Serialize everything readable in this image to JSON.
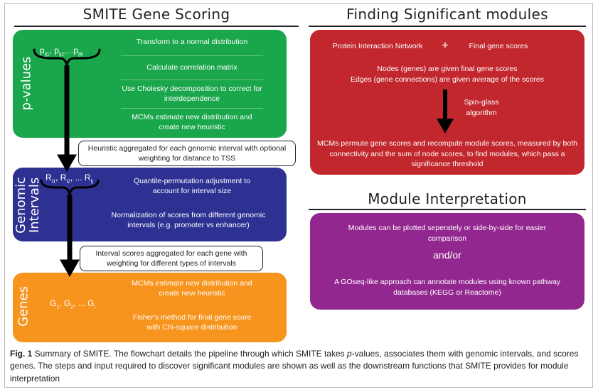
{
  "left_title": "SMITE Gene Scoring",
  "right_title_top": "Finding Significant modules",
  "right_title_bottom": "Module Interpretation",
  "pvalues": {
    "label": "p-values",
    "formula": {
      "t1": "p",
      "s1": "ij1",
      "t2": ", p",
      "s2": "ij2",
      "t3": ",...p",
      "s3": "ijk"
    },
    "steps": [
      "Transform to a normal distribution",
      "Calculate correlation matrix",
      "Use Cholesky decomposition to correct for interdependence",
      "MCMs estimate new distribution and create new heuristic"
    ]
  },
  "callout1": "Heuristic aggregated for each genomic interval with optional weighting for distance to TSS",
  "genomic": {
    "label_line1": "Genomic",
    "label_line2": "Intervals",
    "formula": {
      "t1": "R",
      "s1": "i1",
      "t2": ", R",
      "s2": "i2",
      "t3": ", ... R",
      "s3": "ij"
    },
    "steps": [
      "Quantile-permutation adjustment to account for interval size",
      "Normalization of scores from different genomic intervals (e.g. promoter vs enhancer)"
    ]
  },
  "callout2": "Interval scores aggregated for each gene with weighting for different types of intervals",
  "genes": {
    "label": "Genes",
    "formula": {
      "t1": "G",
      "s1": "1",
      "t2": ", G",
      "s2": "2",
      "t3": ", ... G",
      "s3": "i"
    },
    "steps": [
      "MCMs estimate new distribution and create new heuristic",
      "Fisher's method for final gene score with Chi-square distribution"
    ]
  },
  "modules": {
    "input_left": "Protein Interaction Network",
    "plus": "+",
    "input_right": "Final gene scores",
    "nodes_line": "Nodes (genes) are given final gene scores",
    "edges_line": "Edges (gene connections) are given average of the scores",
    "algorithm": "Spin-glass algorithm",
    "permute": "MCMs permute gene scores and recompute module scores, measured by both connectivity and the sum of node scores, to find modules, which pass a significance threshold"
  },
  "interpretation": {
    "line1": "Modules can be plotted seperately or side-by-side for easier comparison",
    "andor": "and/or",
    "line2": "A GOseq-like approach can annotate modules using known pathway databases (KEGG or Reactome)"
  },
  "caption": {
    "lead": "Fig. 1",
    "part1": " Summary of SMITE. The flowchart details the pipeline through which SMITE takes ",
    "italic": "p",
    "part2": "-values, associates them with genomic intervals, and scores genes. The steps and input required to discover significant modules are shown as well as the downstream functions that SMITE provides for module interpretation"
  }
}
